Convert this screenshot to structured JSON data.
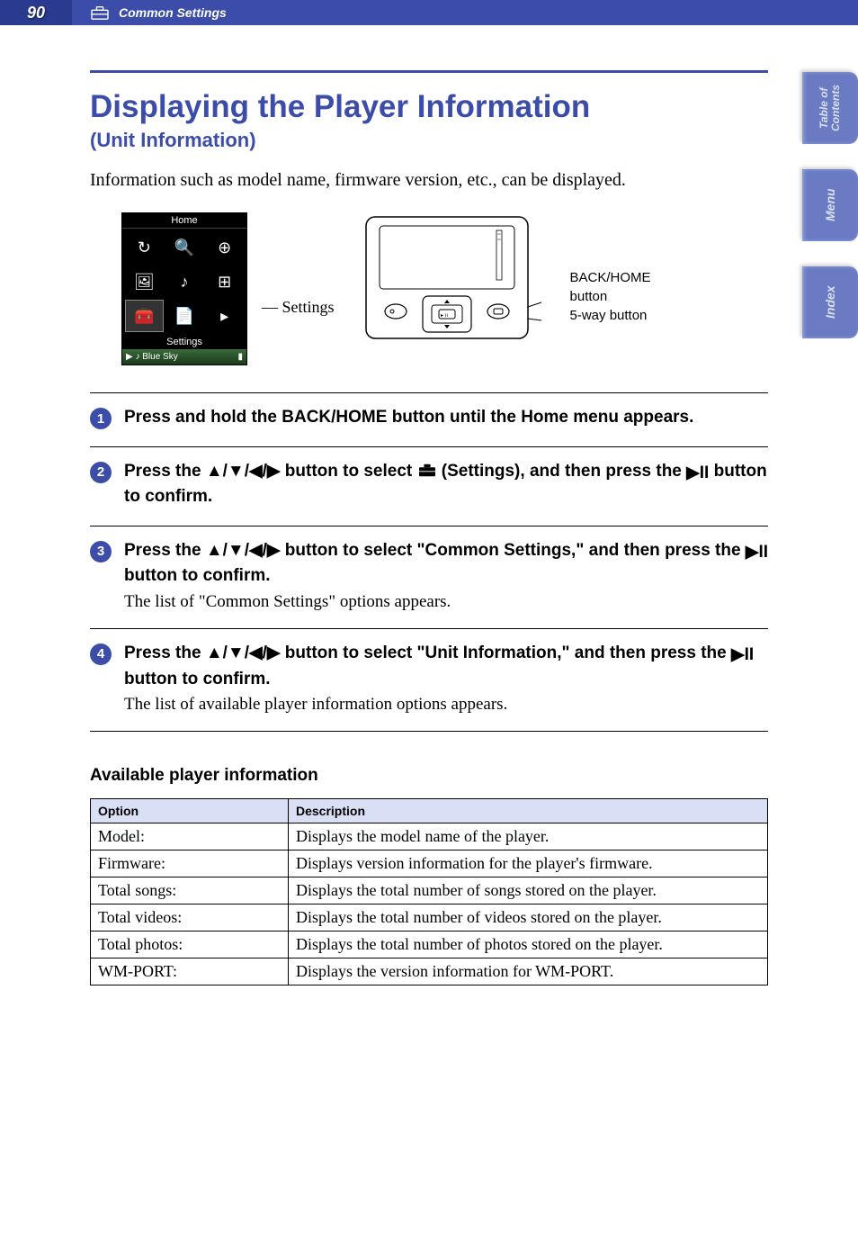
{
  "header": {
    "page_number": "90",
    "section": "Common Settings"
  },
  "side_tabs": [
    "Table of\nContents",
    "Menu",
    "Index"
  ],
  "title": "Displaying the Player Information",
  "subtitle": "(Unit Information)",
  "intro": "Information such as model name, firmware version, etc., can be displayed.",
  "diagram": {
    "settings_pointer": "Settings",
    "screenshot": {
      "home": "Home",
      "settings": "Settings",
      "now_playing": "Blue Sky"
    },
    "device_labels": {
      "back_home": "BACK/HOME button",
      "five_way": "5-way button"
    }
  },
  "steps": [
    {
      "num": "1",
      "title_parts": [
        "Press and hold the BACK/HOME button until the Home menu appears."
      ],
      "desc": ""
    },
    {
      "num": "2",
      "title_parts": [
        "Press the ▲/▼/◀/▶ button to select ",
        "TOOLBOX",
        " (Settings), and then press the ",
        "PLAYPAUSE",
        " button to confirm."
      ],
      "desc": ""
    },
    {
      "num": "3",
      "title_parts": [
        "Press the ▲/▼/◀/▶ button to select \"Common Settings,\" and then press the ",
        "PLAYPAUSE",
        " button to confirm."
      ],
      "desc": "The list of \"Common Settings\" options appears."
    },
    {
      "num": "4",
      "title_parts": [
        "Press the ▲/▼/◀/▶ button to select \"Unit Information,\" and then press the ",
        "PLAYPAUSE",
        " button to confirm."
      ],
      "desc": "The list of available player information options appears."
    }
  ],
  "table_heading": "Available player information",
  "table": {
    "cols": [
      "Option",
      "Description"
    ],
    "rows": [
      [
        "Model:",
        "Displays the model name of the player."
      ],
      [
        "Firmware:",
        "Displays version information for the player's firmware."
      ],
      [
        "Total songs:",
        "Displays the total number of songs stored on the player."
      ],
      [
        "Total videos:",
        "Displays the total number of videos stored on the player."
      ],
      [
        "Total photos:",
        "Displays the total number of photos stored on the player."
      ],
      [
        "WM-PORT:",
        "Displays the version information for WM-PORT."
      ]
    ]
  },
  "colors": {
    "blue": "#3b4da8",
    "tab_bg": "#6a7bc4",
    "th_bg": "#d9dff5",
    "toolbox": "#d97a1a"
  }
}
